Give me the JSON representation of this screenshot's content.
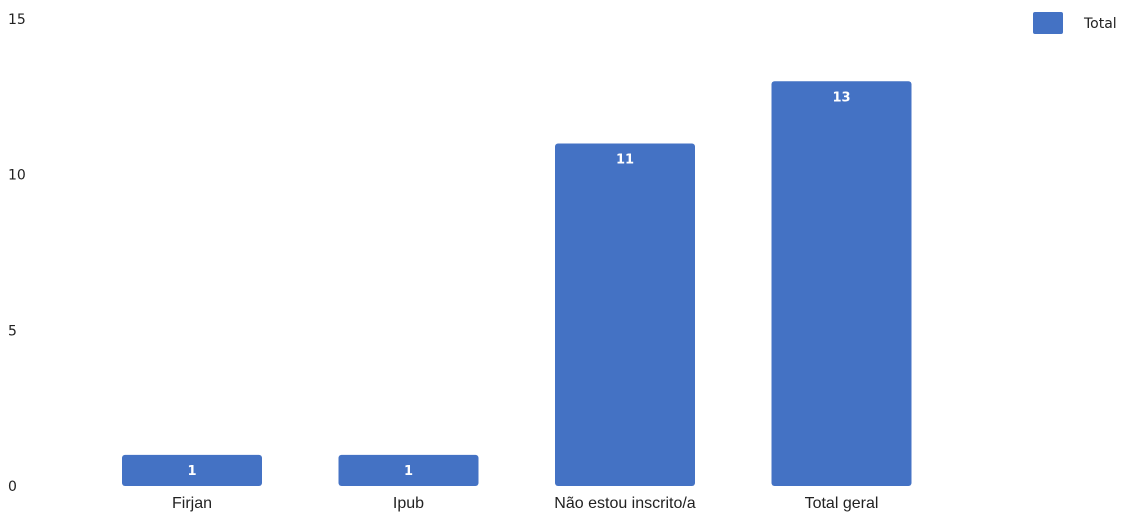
{
  "chart_data": {
    "type": "bar",
    "categories": [
      "Firjan",
      "Ipub",
      "Não estou inscrito/a",
      "Total geral"
    ],
    "series": [
      {
        "name": "Total",
        "values": [
          1,
          1,
          11,
          13
        ],
        "color": "#4472c4"
      }
    ],
    "data_labels": [
      "1",
      "1",
      "11",
      "13"
    ],
    "yticks": [
      0,
      5,
      10,
      15
    ],
    "ytick_labels": [
      "0",
      "5",
      "10",
      "15"
    ],
    "ylim": [
      0,
      15
    ],
    "grid": false,
    "legend": {
      "position": "top-right",
      "entries": [
        "Total"
      ]
    }
  }
}
